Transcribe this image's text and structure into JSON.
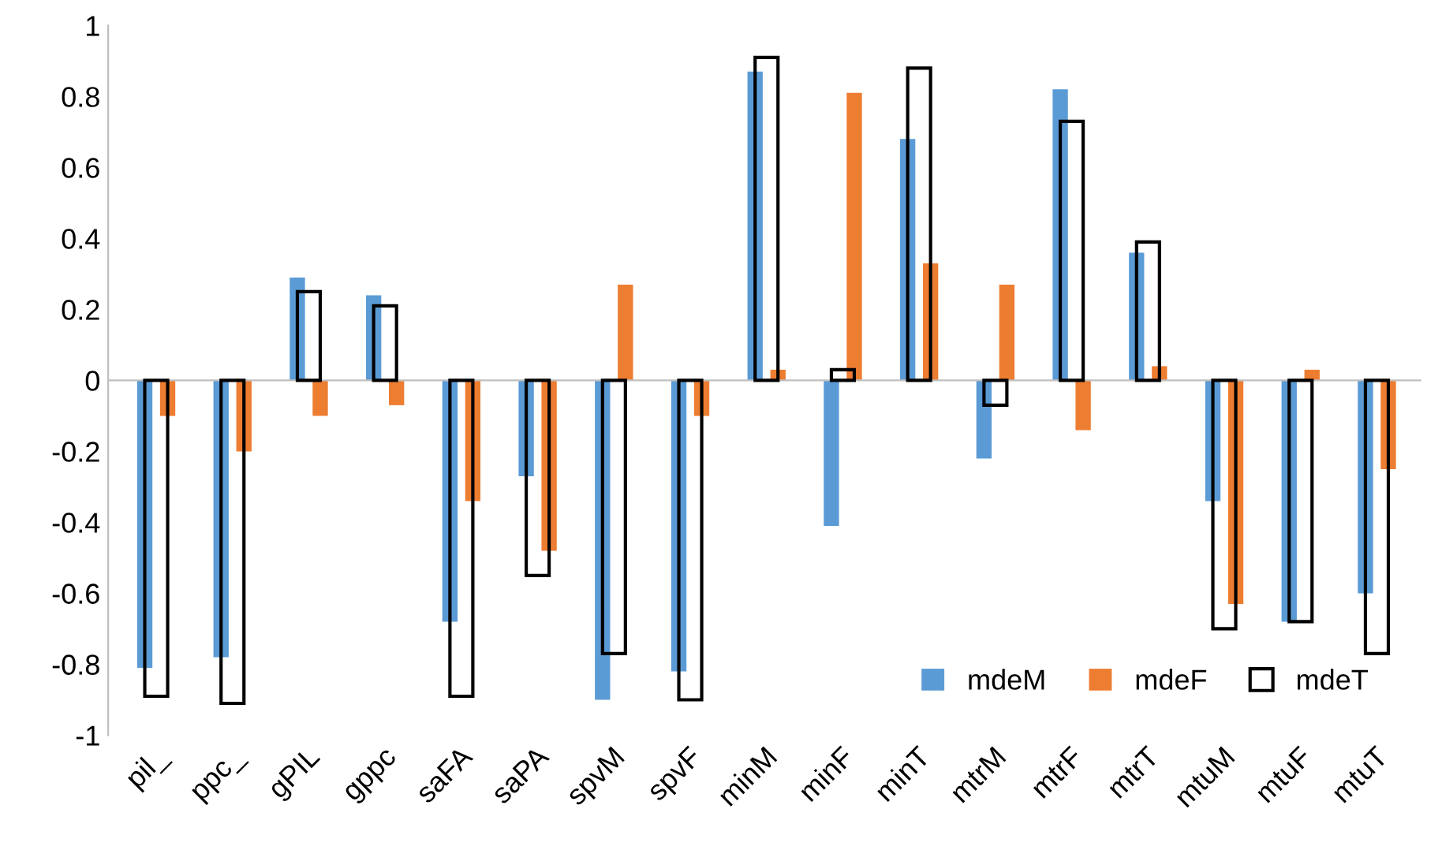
{
  "chart_data": {
    "type": "bar",
    "categories": [
      "pil_",
      "ppc_",
      "gPIL",
      "gppc",
      "saFA",
      "saPA",
      "spvM",
      "spvF",
      "minM",
      "minF",
      "minT",
      "mtrM",
      "mtrF",
      "mtrT",
      "mtuM",
      "mtuF",
      "mtuT"
    ],
    "series": [
      {
        "name": "mdeM",
        "color": "#5b9bd5",
        "values": [
          -0.81,
          -0.78,
          0.29,
          0.24,
          -0.68,
          -0.27,
          -0.9,
          -0.82,
          0.87,
          -0.41,
          0.68,
          -0.22,
          0.82,
          0.36,
          -0.34,
          -0.68,
          -0.6
        ]
      },
      {
        "name": "mdeF",
        "color": "#ed7d31",
        "values": [
          -0.1,
          -0.2,
          -0.1,
          -0.07,
          -0.34,
          -0.48,
          0.27,
          -0.1,
          0.03,
          0.81,
          0.33,
          0.27,
          -0.14,
          0.04,
          -0.63,
          0.03,
          -0.25
        ]
      },
      {
        "name": "mdeT",
        "color": "#000000",
        "values": [
          -0.89,
          -0.91,
          0.25,
          0.21,
          -0.89,
          -0.55,
          -0.77,
          -0.9,
          0.91,
          0.03,
          0.88,
          -0.07,
          0.73,
          0.39,
          -0.7,
          -0.68,
          -0.77
        ]
      }
    ],
    "ylim": [
      -1,
      1
    ],
    "yticks": [
      -1,
      -0.8,
      -0.6,
      -0.4,
      -0.2,
      0,
      0.2,
      0.4,
      0.6,
      0.8,
      1
    ],
    "legend": "bottom right"
  }
}
